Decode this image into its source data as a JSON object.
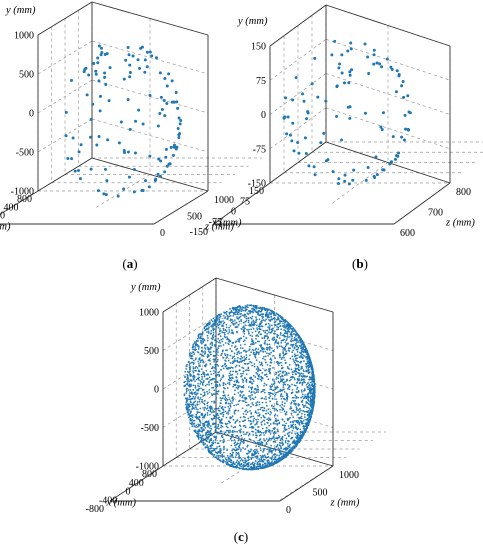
{
  "chart_data": [
    {
      "type": "scatter",
      "panel": "a",
      "caption": {
        "open": "(",
        "letter": "a",
        "close": ")"
      },
      "x_axis": {
        "label": "x (mm)",
        "ticks": [
          "800",
          "400",
          "0",
          "-400",
          "-800"
        ]
      },
      "y_axis": {
        "label": "y (mm)",
        "ticks": [
          "1000",
          "500",
          "0",
          "-500",
          "-1000"
        ]
      },
      "z_axis": {
        "label": "z (mm)",
        "ticks": [
          "0",
          "500",
          "1000"
        ]
      },
      "xlim": [
        -800,
        800
      ],
      "ylim": [
        -1000,
        1000
      ],
      "zlim": [
        0,
        1000
      ],
      "grid": true,
      "point_color": "#1f77b4",
      "points": "sparse hemispherical point cloud (~130 points)"
    },
    {
      "type": "scatter",
      "panel": "b",
      "caption": {
        "open": "(",
        "letter": "b",
        "close": ")"
      },
      "x_axis": {
        "label": "x (mm)",
        "ticks": [
          "150",
          "75",
          "0",
          "-75",
          "-150"
        ]
      },
      "y_axis": {
        "label": "y (mm)",
        "ticks": [
          "150",
          "75",
          "0",
          "-75",
          "-150"
        ]
      },
      "z_axis": {
        "label": "z (mm)",
        "ticks": [
          "600",
          "700",
          "800"
        ]
      },
      "xlim": [
        -150,
        150
      ],
      "ylim": [
        -150,
        150
      ],
      "zlim": [
        600,
        800
      ],
      "grid": true,
      "point_color": "#1f77b4",
      "points": "sparse spherical-cap point cloud (~110 points)"
    },
    {
      "type": "scatter",
      "panel": "c",
      "caption": {
        "open": "(",
        "letter": "c",
        "close": ")"
      },
      "x_axis": {
        "label": "x (mm)",
        "ticks": [
          "800",
          "400",
          "0",
          "-400",
          "-800"
        ]
      },
      "y_axis": {
        "label": "y (mm)",
        "ticks": [
          "1000",
          "500",
          "0",
          "-500",
          "-1000"
        ]
      },
      "z_axis": {
        "label": "z (mm)",
        "ticks": [
          "0",
          "500",
          "1000"
        ]
      },
      "xlim": [
        -800,
        800
      ],
      "ylim": [
        -1000,
        1000
      ],
      "zlim": [
        0,
        1000
      ],
      "grid": true,
      "point_color": "#1f77b4",
      "points": "dense hemispherical point cloud (thousands of points)"
    }
  ]
}
